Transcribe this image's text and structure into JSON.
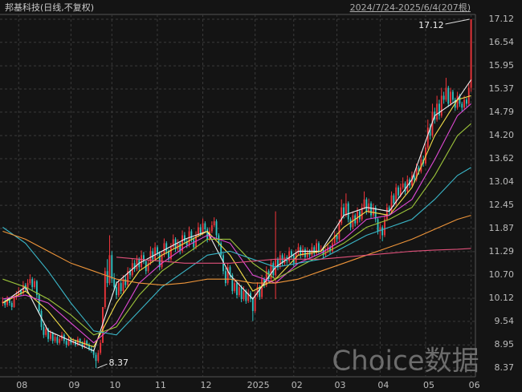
{
  "title": "邦基科技(日线,不复权)",
  "range_label": "2024/7/24-2025/6/4(207根)",
  "watermark": "Choice数据",
  "chart_data": {
    "type": "candlestick",
    "up_color": "#f0353b",
    "down_color": "#2ec4c4",
    "grid": true,
    "xlim": [
      -0.5,
      206.5
    ],
    "ylim": [
      8.15,
      17.24
    ],
    "yticks": [
      17.12,
      16.54,
      15.95,
      15.37,
      14.79,
      {
        "value": 14.2,
        "label": "14.20"
      },
      13.62,
      13.04,
      12.45,
      11.87,
      11.29,
      {
        "value": 10.7,
        "label": "10.70"
      },
      10.12,
      9.54,
      8.95,
      8.37
    ],
    "xticks": [
      {
        "value": 7,
        "label": "08"
      },
      {
        "value": 30,
        "label": "09"
      },
      {
        "value": 48,
        "label": "10"
      },
      {
        "value": 68,
        "label": "11"
      },
      {
        "value": 88,
        "label": "12"
      },
      {
        "value": 111,
        "label": "2025"
      },
      {
        "value": 128,
        "label": "02"
      },
      {
        "value": 147,
        "label": "03"
      },
      {
        "value": 166,
        "label": "04"
      },
      {
        "value": 186,
        "label": "05"
      },
      {
        "value": 206,
        "label": "06"
      }
    ],
    "high_label": "17.12",
    "low_label": "8.37",
    "ohlc": [
      [
        10.0,
        10.15,
        9.92,
        10.05
      ],
      [
        10.05,
        10.12,
        9.88,
        9.95
      ],
      [
        9.95,
        10.18,
        9.9,
        10.1
      ],
      [
        10.1,
        10.15,
        9.93,
        10.0
      ],
      [
        10.0,
        10.05,
        9.82,
        9.9
      ],
      [
        9.9,
        10.22,
        9.88,
        10.15
      ],
      [
        10.15,
        10.3,
        10.08,
        10.2
      ],
      [
        10.2,
        10.4,
        10.15,
        10.3
      ],
      [
        10.3,
        10.36,
        10.18,
        10.25
      ],
      [
        10.25,
        10.55,
        10.2,
        10.45
      ],
      [
        10.45,
        10.5,
        10.28,
        10.35
      ],
      [
        10.35,
        10.6,
        10.3,
        10.5
      ],
      [
        10.5,
        10.72,
        10.45,
        10.6
      ],
      [
        10.6,
        10.65,
        10.32,
        10.4
      ],
      [
        10.4,
        10.62,
        10.35,
        10.55
      ],
      [
        10.55,
        10.58,
        10.12,
        10.2
      ],
      [
        10.2,
        10.25,
        9.72,
        9.8
      ],
      [
        9.8,
        9.85,
        9.32,
        9.4
      ],
      [
        9.4,
        9.48,
        9.12,
        9.2
      ],
      [
        9.2,
        9.45,
        9.15,
        9.35
      ],
      [
        9.35,
        9.38,
        9.02,
        9.1
      ],
      [
        9.1,
        9.32,
        9.05,
        9.25
      ],
      [
        9.25,
        9.28,
        8.98,
        9.05
      ],
      [
        9.05,
        9.22,
        9.0,
        9.15
      ],
      [
        9.15,
        9.18,
        8.95,
        9.0
      ],
      [
        9.0,
        9.16,
        8.96,
        9.1
      ],
      [
        9.1,
        9.28,
        9.05,
        9.2
      ],
      [
        9.2,
        9.24,
        8.98,
        9.05
      ],
      [
        9.05,
        9.1,
        8.88,
        8.95
      ],
      [
        8.95,
        9.18,
        8.92,
        9.1
      ],
      [
        9.1,
        9.14,
        8.94,
        9.0
      ],
      [
        9.0,
        9.12,
        8.96,
        9.05
      ],
      [
        9.05,
        9.08,
        8.9,
        8.95
      ],
      [
        8.95,
        9.16,
        8.92,
        9.1
      ],
      [
        9.1,
        9.12,
        8.95,
        9.0
      ],
      [
        9.0,
        9.04,
        8.85,
        8.9
      ],
      [
        8.9,
        9.12,
        8.86,
        9.05
      ],
      [
        9.05,
        9.08,
        8.9,
        8.95
      ],
      [
        8.95,
        9.0,
        8.8,
        8.85
      ],
      [
        8.85,
        8.92,
        8.75,
        8.8
      ],
      [
        8.8,
        8.84,
        8.62,
        8.7
      ],
      [
        8.7,
        8.76,
        8.37,
        8.55
      ],
      [
        8.55,
        8.82,
        8.5,
        8.75
      ],
      [
        8.75,
        9.08,
        8.7,
        9.0
      ],
      [
        9.0,
        9.9,
        9.0,
        9.9
      ],
      [
        9.9,
        10.89,
        9.85,
        10.8
      ],
      [
        10.8,
        11.1,
        10.4,
        10.5
      ],
      [
        10.5,
        11.7,
        10.45,
        11.2
      ],
      [
        11.2,
        11.3,
        10.5,
        10.6
      ],
      [
        10.6,
        10.75,
        10.3,
        10.4
      ],
      [
        10.4,
        10.55,
        10.1,
        10.2
      ],
      [
        10.2,
        10.6,
        10.15,
        10.5
      ],
      [
        10.5,
        10.58,
        10.22,
        10.3
      ],
      [
        10.3,
        10.7,
        10.25,
        10.6
      ],
      [
        10.6,
        10.68,
        10.38,
        10.45
      ],
      [
        10.45,
        10.9,
        10.4,
        10.8
      ],
      [
        10.8,
        10.88,
        10.6,
        10.7
      ],
      [
        10.7,
        11.12,
        10.65,
        11.0
      ],
      [
        11.0,
        11.08,
        10.78,
        10.85
      ],
      [
        10.85,
        11.2,
        10.8,
        11.1
      ],
      [
        11.1,
        11.15,
        10.82,
        10.9
      ],
      [
        10.9,
        11.32,
        10.85,
        11.2
      ],
      [
        11.2,
        11.28,
        10.98,
        11.05
      ],
      [
        11.05,
        11.1,
        10.72,
        10.8
      ],
      [
        10.8,
        11.08,
        10.75,
        11.0
      ],
      [
        11.0,
        11.42,
        10.95,
        11.3
      ],
      [
        11.3,
        11.38,
        11.02,
        11.1
      ],
      [
        11.1,
        11.52,
        11.05,
        11.4
      ],
      [
        11.4,
        11.45,
        11.18,
        11.25
      ],
      [
        11.25,
        11.3,
        10.82,
        10.9
      ],
      [
        10.9,
        11.28,
        10.85,
        11.2
      ],
      [
        11.2,
        11.62,
        11.15,
        11.5
      ],
      [
        11.5,
        11.55,
        11.22,
        11.3
      ],
      [
        11.3,
        11.35,
        11.02,
        11.1
      ],
      [
        11.1,
        11.5,
        11.05,
        11.4
      ],
      [
        11.4,
        11.72,
        11.35,
        11.6
      ],
      [
        11.6,
        11.65,
        11.28,
        11.35
      ],
      [
        11.35,
        11.6,
        11.3,
        11.5
      ],
      [
        11.5,
        11.55,
        11.22,
        11.3
      ],
      [
        11.3,
        11.82,
        11.25,
        11.7
      ],
      [
        11.7,
        11.78,
        11.48,
        11.55
      ],
      [
        11.55,
        11.62,
        11.38,
        11.45
      ],
      [
        11.45,
        11.92,
        11.4,
        11.8
      ],
      [
        11.8,
        11.85,
        11.52,
        11.6
      ],
      [
        11.6,
        11.65,
        11.32,
        11.4
      ],
      [
        11.4,
        11.8,
        11.35,
        11.7
      ],
      [
        11.7,
        12.02,
        11.65,
        11.9
      ],
      [
        11.9,
        11.98,
        11.68,
        11.75
      ],
      [
        11.75,
        12.12,
        11.7,
        12.0
      ],
      [
        12.0,
        12.05,
        11.78,
        11.85
      ],
      [
        11.85,
        11.9,
        11.52,
        11.6
      ],
      [
        11.6,
        11.9,
        11.55,
        11.8
      ],
      [
        11.8,
        12.05,
        11.75,
        11.95
      ],
      [
        11.95,
        12.15,
        11.9,
        12.05
      ],
      [
        12.05,
        12.1,
        11.62,
        11.7
      ],
      [
        11.7,
        11.75,
        11.42,
        11.5
      ],
      [
        11.5,
        11.55,
        11.12,
        11.2
      ],
      [
        11.2,
        11.25,
        10.72,
        10.8
      ],
      [
        10.8,
        10.88,
        10.42,
        10.5
      ],
      [
        10.5,
        11.0,
        10.45,
        10.9
      ],
      [
        10.9,
        10.95,
        10.62,
        10.7
      ],
      [
        10.7,
        10.75,
        10.22,
        10.3
      ],
      [
        10.3,
        10.62,
        10.25,
        10.5
      ],
      [
        10.5,
        10.55,
        10.12,
        10.2
      ],
      [
        10.2,
        10.52,
        10.15,
        10.4
      ],
      [
        10.4,
        10.45,
        10.02,
        10.1
      ],
      [
        10.1,
        10.42,
        10.05,
        10.3
      ],
      [
        10.3,
        10.35,
        9.98,
        10.05
      ],
      [
        10.05,
        10.35,
        10.0,
        10.25
      ],
      [
        10.25,
        10.3,
        10.02,
        10.1
      ],
      [
        10.1,
        10.15,
        9.55,
        9.8
      ],
      [
        9.8,
        10.3,
        9.75,
        10.2
      ],
      [
        10.2,
        10.52,
        10.15,
        10.4
      ],
      [
        10.4,
        10.45,
        10.08,
        10.15
      ],
      [
        10.15,
        10.7,
        10.1,
        10.6
      ],
      [
        10.6,
        10.65,
        10.38,
        10.45
      ],
      [
        10.45,
        10.92,
        10.4,
        10.8
      ],
      [
        10.8,
        10.85,
        10.52,
        10.6
      ],
      [
        10.6,
        11.1,
        10.55,
        11.0
      ],
      [
        11.0,
        11.05,
        10.62,
        10.7
      ],
      [
        10.7,
        12.3,
        10.1,
        11.1
      ],
      [
        11.1,
        11.15,
        10.82,
        10.9
      ],
      [
        10.9,
        11.3,
        10.85,
        11.2
      ],
      [
        11.2,
        11.25,
        10.92,
        11.0
      ],
      [
        11.0,
        11.25,
        10.95,
        11.15
      ],
      [
        11.15,
        11.2,
        10.98,
        11.05
      ],
      [
        11.05,
        11.4,
        11.0,
        11.3
      ],
      [
        11.3,
        11.35,
        11.12,
        11.2
      ],
      [
        11.2,
        11.25,
        10.92,
        11.0
      ],
      [
        11.0,
        11.35,
        10.95,
        11.25
      ],
      [
        11.25,
        11.5,
        11.2,
        11.4
      ],
      [
        11.4,
        11.45,
        11.12,
        11.2
      ],
      [
        11.2,
        11.45,
        11.15,
        11.35
      ],
      [
        11.35,
        11.4,
        11.08,
        11.15
      ],
      [
        11.15,
        11.4,
        11.1,
        11.3
      ],
      [
        11.3,
        11.35,
        11.12,
        11.2
      ],
      [
        11.2,
        11.5,
        11.15,
        11.4
      ],
      [
        11.4,
        11.45,
        11.18,
        11.25
      ],
      [
        11.25,
        11.6,
        11.2,
        11.5
      ],
      [
        11.5,
        11.55,
        11.22,
        11.3
      ],
      [
        11.3,
        11.45,
        11.25,
        11.35
      ],
      [
        11.35,
        11.4,
        11.12,
        11.2
      ],
      [
        11.2,
        11.38,
        11.15,
        11.3
      ],
      [
        11.3,
        11.5,
        11.25,
        11.4
      ],
      [
        11.4,
        11.45,
        11.22,
        11.3
      ],
      [
        11.3,
        11.6,
        11.25,
        11.5
      ],
      [
        11.5,
        11.8,
        11.45,
        11.7
      ],
      [
        11.7,
        11.75,
        11.52,
        11.6
      ],
      [
        11.6,
        12.1,
        11.55,
        12.0
      ],
      [
        12.0,
        12.6,
        11.95,
        12.4
      ],
      [
        12.4,
        12.5,
        12.12,
        12.2
      ],
      [
        12.2,
        12.75,
        12.15,
        12.5
      ],
      [
        12.5,
        12.55,
        12.02,
        12.1
      ],
      [
        12.1,
        12.15,
        11.82,
        11.9
      ],
      [
        11.9,
        12.3,
        11.85,
        12.2
      ],
      [
        12.2,
        12.25,
        11.92,
        12.0
      ],
      [
        12.0,
        12.4,
        11.95,
        12.3
      ],
      [
        12.3,
        12.35,
        12.02,
        12.1
      ],
      [
        12.1,
        12.5,
        12.05,
        12.4
      ],
      [
        12.4,
        12.8,
        12.35,
        12.6
      ],
      [
        12.6,
        12.65,
        12.22,
        12.3
      ],
      [
        12.3,
        12.62,
        12.25,
        12.5
      ],
      [
        12.5,
        12.55,
        12.12,
        12.2
      ],
      [
        12.2,
        12.5,
        12.15,
        12.4
      ],
      [
        12.4,
        12.45,
        12.02,
        12.1
      ],
      [
        12.1,
        12.15,
        11.72,
        11.8
      ],
      [
        11.8,
        12.0,
        11.6,
        11.9
      ],
      [
        11.9,
        11.95,
        11.55,
        11.7
      ],
      [
        11.7,
        12.2,
        11.65,
        12.1
      ],
      [
        12.1,
        12.5,
        12.05,
        12.4
      ],
      [
        12.4,
        12.45,
        12.22,
        12.3
      ],
      [
        12.3,
        12.8,
        12.25,
        12.7
      ],
      [
        12.7,
        12.75,
        12.42,
        12.5
      ],
      [
        12.5,
        13.0,
        12.45,
        12.9
      ],
      [
        12.9,
        12.95,
        12.62,
        12.7
      ],
      [
        12.7,
        13.0,
        12.65,
        12.9
      ],
      [
        12.9,
        13.15,
        12.85,
        13.0
      ],
      [
        13.0,
        13.05,
        12.72,
        12.8
      ],
      [
        12.8,
        13.2,
        12.75,
        13.1
      ],
      [
        13.1,
        13.15,
        12.88,
        12.95
      ],
      [
        12.95,
        13.3,
        12.9,
        13.2
      ],
      [
        13.2,
        13.25,
        13.02,
        13.1
      ],
      [
        13.1,
        13.5,
        13.05,
        13.4
      ],
      [
        13.4,
        13.45,
        13.22,
        13.3
      ],
      [
        13.3,
        13.8,
        13.25,
        13.6
      ],
      [
        13.6,
        13.7,
        13.42,
        13.5
      ],
      [
        13.5,
        14.0,
        13.45,
        13.9
      ],
      [
        13.9,
        14.6,
        13.85,
        14.4
      ],
      [
        14.4,
        14.5,
        14.1,
        14.2
      ],
      [
        14.2,
        15.0,
        14.15,
        14.8
      ],
      [
        14.8,
        14.9,
        14.5,
        14.6
      ],
      [
        14.6,
        15.2,
        14.55,
        15.0
      ],
      [
        15.0,
        15.1,
        14.6,
        14.7
      ],
      [
        14.7,
        15.4,
        14.65,
        15.2
      ],
      [
        15.2,
        15.3,
        15.0,
        15.1
      ],
      [
        15.1,
        15.65,
        15.05,
        15.4
      ],
      [
        15.4,
        15.45,
        14.92,
        15.0
      ],
      [
        15.0,
        15.4,
        14.95,
        15.3
      ],
      [
        15.3,
        15.35,
        15.02,
        15.1
      ],
      [
        15.1,
        15.15,
        14.82,
        14.9
      ],
      [
        14.9,
        15.3,
        14.85,
        15.2
      ],
      [
        15.2,
        15.25,
        14.92,
        15.0
      ],
      [
        15.0,
        15.05,
        14.8,
        14.9
      ],
      [
        14.9,
        15.2,
        14.85,
        15.1
      ],
      [
        15.1,
        15.15,
        14.92,
        15.0
      ],
      [
        15.0,
        15.5,
        14.95,
        15.4
      ],
      [
        15.4,
        17.12,
        15.3,
        17.12
      ]
    ],
    "ma_x": [
      0,
      10,
      20,
      30,
      40,
      50,
      60,
      70,
      80,
      90,
      100,
      110,
      120,
      130,
      140,
      150,
      160,
      170,
      180,
      190,
      200,
      206
    ],
    "series": [
      {
        "color": "#f2f2f2",
        "values": [
          10.0,
          10.4,
          9.3,
          9.05,
          8.8,
          10.5,
          11.0,
          11.3,
          11.6,
          11.8,
          10.7,
          10.1,
          10.9,
          11.3,
          11.3,
          12.2,
          12.4,
          12.3,
          13.1,
          14.7,
          15.1,
          15.6
        ]
      },
      {
        "color": "#f5e04a",
        "values": [
          10.0,
          10.3,
          9.8,
          9.1,
          8.9,
          10.0,
          10.8,
          11.2,
          11.5,
          11.8,
          11.2,
          10.3,
          10.6,
          11.2,
          11.3,
          11.9,
          12.3,
          12.2,
          12.9,
          14.2,
          15.1,
          15.2
        ]
      },
      {
        "color": "#e14ad6",
        "values": [
          10.1,
          10.2,
          10.0,
          9.5,
          9.0,
          9.5,
          10.5,
          11.0,
          11.4,
          11.7,
          11.5,
          10.7,
          10.5,
          11.0,
          11.25,
          11.6,
          12.1,
          12.2,
          12.6,
          13.6,
          14.7,
          15.0
        ]
      },
      {
        "color": "#9cc43a",
        "values": [
          10.6,
          10.4,
          10.1,
          9.7,
          9.2,
          9.4,
          10.2,
          10.8,
          11.2,
          11.6,
          11.6,
          11.0,
          10.6,
          10.9,
          11.2,
          11.5,
          11.9,
          12.1,
          12.4,
          13.2,
          14.2,
          14.5
        ]
      },
      {
        "color": "#3ab6c8",
        "values": [
          11.9,
          11.5,
          10.8,
          10.0,
          9.3,
          9.2,
          9.8,
          10.4,
          10.8,
          11.2,
          11.3,
          11.1,
          10.9,
          11.0,
          11.1,
          11.4,
          11.7,
          11.9,
          12.1,
          12.6,
          13.2,
          13.4
        ]
      },
      {
        "color": "#f0963a",
        "values": [
          11.8,
          11.6,
          11.3,
          11.0,
          10.8,
          10.6,
          10.5,
          10.45,
          10.5,
          10.6,
          10.6,
          10.5,
          10.5,
          10.6,
          10.8,
          11.0,
          11.2,
          11.4,
          11.6,
          11.85,
          12.1,
          12.2
        ]
      },
      {
        "color": "#e0507a",
        "values": [
          null,
          null,
          null,
          null,
          null,
          11.15,
          11.1,
          11.05,
          11.0,
          11.0,
          11.0,
          11.05,
          11.1,
          11.1,
          11.1,
          11.15,
          11.2,
          11.25,
          11.3,
          11.33,
          11.35,
          11.37
        ]
      }
    ]
  }
}
